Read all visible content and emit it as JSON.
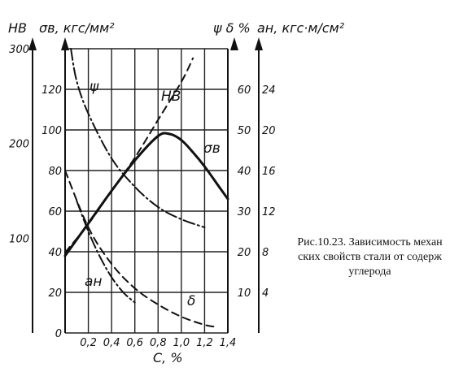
{
  "caption": {
    "line1": "Рис.10.23. Зависимость механ",
    "line2": "ских свойств стали от содерж",
    "line3": "углерода"
  },
  "chart_data": {
    "type": "line",
    "title": "",
    "xlabel": "C, %",
    "x_ticks": [
      "0,2",
      "0,4",
      "0,6",
      "0,8",
      "1,0",
      "1,2",
      "1,4"
    ],
    "xlim": [
      0,
      1.4
    ],
    "axes": [
      {
        "id": "HB",
        "label": "HB",
        "range": [
          0,
          300
        ],
        "ticks": [
          "100",
          "200",
          "300"
        ]
      },
      {
        "id": "sigma",
        "label": "σв, кгс/мм²",
        "range": [
          0,
          140
        ],
        "ticks": [
          "0",
          "20",
          "40",
          "60",
          "80",
          "100",
          "120"
        ]
      },
      {
        "id": "psi_delta",
        "label": "ψ δ %",
        "range": [
          0,
          70
        ],
        "ticks": [
          "10",
          "20",
          "30",
          "40",
          "50",
          "60"
        ]
      },
      {
        "id": "an",
        "label": "aн, кгс·м/см²",
        "range": [
          0,
          28
        ],
        "ticks": [
          "4",
          "8",
          "12",
          "16",
          "20",
          "24"
        ]
      }
    ],
    "series": [
      {
        "name": "σв",
        "axis": "sigma",
        "style": "solid",
        "x": [
          0.0,
          0.2,
          0.4,
          0.6,
          0.8,
          0.9,
          1.0,
          1.1,
          1.2,
          1.3,
          1.4
        ],
        "y": [
          38,
          54,
          70,
          85,
          97,
          98,
          95,
          89,
          82,
          74,
          66
        ]
      },
      {
        "name": "HB",
        "axis": "HB",
        "style": "dashed",
        "x": [
          0.0,
          0.2,
          0.4,
          0.6,
          0.8,
          1.0,
          1.1
        ],
        "y": [
          85,
          115,
          150,
          185,
          225,
          265,
          290
        ]
      },
      {
        "name": "ψ",
        "axis": "psi_delta",
        "style": "dash-dot",
        "x": [
          0.05,
          0.1,
          0.2,
          0.4,
          0.6,
          0.8,
          1.0,
          1.2
        ],
        "y": [
          70,
          62,
          54,
          43,
          36,
          31,
          28,
          26
        ]
      },
      {
        "name": "δ",
        "axis": "psi_delta",
        "style": "dashed",
        "x": [
          0.0,
          0.2,
          0.4,
          0.6,
          0.8,
          1.0,
          1.2,
          1.3
        ],
        "y": [
          40,
          26,
          17,
          11,
          7,
          4,
          2,
          1.5
        ]
      },
      {
        "name": "aн",
        "axis": "an",
        "style": "dash-dot",
        "x": [
          0.1,
          0.2,
          0.3,
          0.4,
          0.5,
          0.6
        ],
        "y": [
          13,
          10,
          7.5,
          5.5,
          4,
          3
        ]
      }
    ],
    "grid": true
  }
}
